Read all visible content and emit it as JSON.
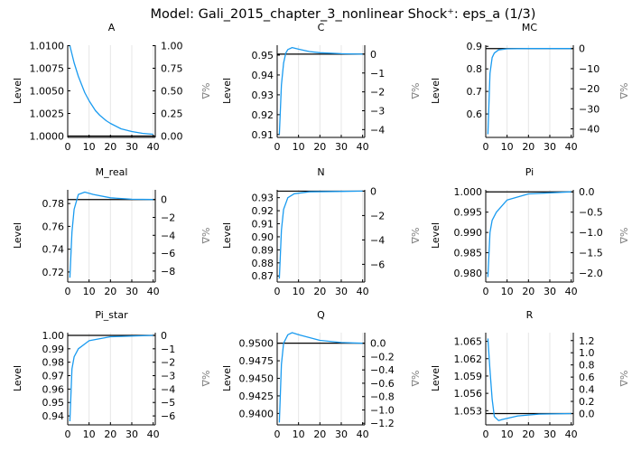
{
  "title": "Model: Gali_2015_chapter_3_nonlinear        Shock⁺: eps_a  (1/3)",
  "chart_data": [
    {
      "type": "line",
      "title": "A",
      "ylabel": "Level",
      "y2label": "%Δ",
      "ss": 1.0,
      "ylim": [
        0.99995,
        1.01005
      ],
      "xlim": [
        0,
        41
      ],
      "xticks": [
        0,
        10,
        20,
        30,
        40
      ],
      "yticks": [
        1.0,
        1.0025,
        1.005,
        1.0075,
        1.01
      ],
      "ytick_labels": [
        "1.0000",
        "1.0025",
        "1.0050",
        "1.0075",
        "1.0100"
      ],
      "y2ticks": [
        0,
        0.25,
        0.5,
        0.75,
        1.0
      ],
      "y2tick_labels": [
        "0.00",
        "0.25",
        "0.50",
        "0.75",
        "1.00"
      ],
      "x": [
        1,
        3,
        5,
        8,
        10,
        13,
        15,
        18,
        20,
        25,
        30,
        35,
        40
      ],
      "y": [
        1.01,
        1.0081,
        1.0066,
        1.0048,
        1.0039,
        1.0028,
        1.0023,
        1.0017,
        1.0014,
        1.0008,
        1.0005,
        1.0003,
        1.0002
      ]
    },
    {
      "type": "line",
      "title": "C",
      "ylabel": "Level",
      "y2label": "%Δ",
      "ss": 0.9505,
      "ylim": [
        0.909,
        0.955
      ],
      "xlim": [
        0,
        41
      ],
      "xticks": [
        0,
        10,
        20,
        30,
        40
      ],
      "yticks": [
        0.91,
        0.92,
        0.93,
        0.94,
        0.95
      ],
      "ytick_labels": [
        "0.91",
        "0.92",
        "0.93",
        "0.94",
        "0.95"
      ],
      "y2ticks": [
        0,
        -1,
        -2,
        -3,
        -4
      ],
      "y2tick_labels": [
        "0",
        "−1",
        "−2",
        "−3",
        "−4"
      ],
      "x": [
        1,
        2,
        3,
        4,
        5,
        7,
        10,
        15,
        20,
        30,
        40
      ],
      "y": [
        0.91,
        0.935,
        0.946,
        0.951,
        0.9528,
        0.9538,
        0.953,
        0.9518,
        0.9512,
        0.9507,
        0.9505
      ]
    },
    {
      "type": "line",
      "title": "MC",
      "ylabel": "Level",
      "y2label": "%Δ",
      "ss": 0.89,
      "ylim": [
        0.5,
        0.905
      ],
      "xlim": [
        0,
        41
      ],
      "xticks": [
        0,
        10,
        20,
        30,
        40
      ],
      "yticks": [
        0.6,
        0.7,
        0.8,
        0.9
      ],
      "ytick_labels": [
        "0.6",
        "0.7",
        "0.8",
        "0.9"
      ],
      "y2ticks": [
        0,
        -10,
        -20,
        -30,
        -40
      ],
      "y2tick_labels": [
        "0",
        "−10",
        "−20",
        "−30",
        "−40"
      ],
      "x": [
        1,
        2,
        3,
        4,
        6,
        10,
        20,
        40
      ],
      "y": [
        0.51,
        0.78,
        0.85,
        0.87,
        0.884,
        0.889,
        0.89,
        0.89
      ]
    },
    {
      "type": "line",
      "title": "M_real",
      "ylabel": "Level",
      "y2label": "%Δ",
      "ss": 0.7835,
      "ylim": [
        0.712,
        0.792
      ],
      "xlim": [
        0,
        41
      ],
      "xticks": [
        0,
        10,
        20,
        30,
        40
      ],
      "yticks": [
        0.72,
        0.74,
        0.76,
        0.78
      ],
      "ytick_labels": [
        "0.72",
        "0.74",
        "0.76",
        "0.78"
      ],
      "y2ticks": [
        0,
        -2,
        -4,
        -6,
        -8
      ],
      "y2tick_labels": [
        "0",
        "−2",
        "−4",
        "−6",
        "−8"
      ],
      "x": [
        1,
        2,
        3,
        5,
        8,
        12,
        20,
        30,
        40
      ],
      "y": [
        0.715,
        0.755,
        0.775,
        0.788,
        0.79,
        0.788,
        0.785,
        0.7838,
        0.7835
      ]
    },
    {
      "type": "line",
      "title": "N",
      "ylabel": "Level",
      "y2label": "%Δ",
      "ss": 0.935,
      "ylim": [
        0.866,
        0.936
      ],
      "xlim": [
        0,
        41
      ],
      "xticks": [
        0,
        10,
        20,
        30,
        40
      ],
      "yticks": [
        0.87,
        0.88,
        0.89,
        0.9,
        0.91,
        0.92,
        0.93
      ],
      "ytick_labels": [
        "0.87",
        "0.88",
        "0.89",
        "0.90",
        "0.91",
        "0.92",
        "0.93"
      ],
      "y2ticks": [
        0,
        -2,
        -4,
        -6
      ],
      "y2tick_labels": [
        "0",
        "−2",
        "−4",
        "−6"
      ],
      "x": [
        1,
        2,
        3,
        5,
        8,
        15,
        40
      ],
      "y": [
        0.868,
        0.905,
        0.921,
        0.93,
        0.933,
        0.9345,
        0.935
      ]
    },
    {
      "type": "line",
      "title": "Pi",
      "ylabel": "Level",
      "y2label": "%Δ",
      "ss": 1.0,
      "ylim": [
        0.978,
        1.0005
      ],
      "xlim": [
        0,
        41
      ],
      "xticks": [
        0,
        10,
        20,
        30,
        40
      ],
      "yticks": [
        0.98,
        0.985,
        0.99,
        0.995,
        1.0
      ],
      "ytick_labels": [
        "0.980",
        "0.985",
        "0.990",
        "0.995",
        "1.000"
      ],
      "y2ticks": [
        0,
        -0.5,
        -1.0,
        -1.5,
        -2.0
      ],
      "y2tick_labels": [
        "0.0",
        "−0.5",
        "−1.0",
        "−1.5",
        "−2.0"
      ],
      "x": [
        1,
        2,
        3,
        5,
        10,
        20,
        40
      ],
      "y": [
        0.979,
        0.99,
        0.993,
        0.995,
        0.998,
        0.9995,
        1.0
      ]
    },
    {
      "type": "line",
      "title": "Pi_star",
      "ylabel": "Level",
      "y2label": "%Δ",
      "ss": 1.0,
      "ylim": [
        0.934,
        1.002
      ],
      "xlim": [
        0,
        41
      ],
      "xticks": [
        0,
        10,
        20,
        30,
        40
      ],
      "yticks": [
        0.94,
        0.95,
        0.96,
        0.97,
        0.98,
        0.99,
        1.0
      ],
      "ytick_labels": [
        "0.94",
        "0.95",
        "0.96",
        "0.97",
        "0.98",
        "0.99",
        "1.00"
      ],
      "y2ticks": [
        0,
        -1,
        -2,
        -3,
        -4,
        -5,
        -6
      ],
      "y2tick_labels": [
        "0",
        "−1",
        "−2",
        "−3",
        "−4",
        "−5",
        "−6"
      ],
      "x": [
        1,
        2,
        3,
        5,
        10,
        20,
        40
      ],
      "y": [
        0.936,
        0.975,
        0.984,
        0.99,
        0.996,
        0.999,
        1.0
      ]
    },
    {
      "type": "line",
      "title": "Q",
      "ylabel": "Level",
      "y2label": "%Δ",
      "ss": 0.95,
      "ylim": [
        0.9385,
        0.9515
      ],
      "xlim": [
        0,
        41
      ],
      "xticks": [
        0,
        10,
        20,
        30,
        40
      ],
      "yticks": [
        0.94,
        0.9425,
        0.945,
        0.9475,
        0.95
      ],
      "ytick_labels": [
        "0.9400",
        "0.9425",
        "0.9450",
        "0.9475",
        "0.9500"
      ],
      "y2ticks": [
        0,
        -0.2,
        -0.4,
        -0.6,
        -0.8,
        -1.0,
        -1.2
      ],
      "y2tick_labels": [
        "0.0",
        "−0.2",
        "−0.4",
        "−0.6",
        "−0.8",
        "−1.0",
        "−1.2"
      ],
      "x": [
        1,
        2,
        3,
        5,
        7,
        10,
        20,
        30,
        40
      ],
      "y": [
        0.9387,
        0.947,
        0.95,
        0.9512,
        0.9515,
        0.9512,
        0.9504,
        0.9501,
        0.95
      ]
    },
    {
      "type": "line",
      "title": "R",
      "ylabel": "Level",
      "y2label": "%Δ",
      "ss": 1.0525,
      "ylim": [
        1.0507,
        1.0665
      ],
      "xlim": [
        0,
        41
      ],
      "xticks": [
        0,
        10,
        20,
        30,
        40
      ],
      "yticks": [
        1.053,
        1.056,
        1.059,
        1.062,
        1.065
      ],
      "ytick_labels": [
        "1.053",
        "1.056",
        "1.059",
        "1.062",
        "1.065"
      ],
      "y2ticks": [
        0,
        0.2,
        0.4,
        0.6,
        0.8,
        1.0,
        1.2
      ],
      "y2tick_labels": [
        "0.0",
        "0.2",
        "0.4",
        "0.6",
        "0.8",
        "1.0",
        "1.2"
      ],
      "x": [
        1,
        2,
        3,
        4,
        6,
        8,
        15,
        25,
        40
      ],
      "y": [
        1.0655,
        1.06,
        1.055,
        1.052,
        1.0513,
        1.0515,
        1.0521,
        1.0524,
        1.0525
      ]
    }
  ],
  "colors": {
    "series": "#1a9bf0",
    "steady_state": "#000000",
    "grid": "#e6e6e6",
    "axis": "#000000",
    "y2label": "#808080"
  }
}
